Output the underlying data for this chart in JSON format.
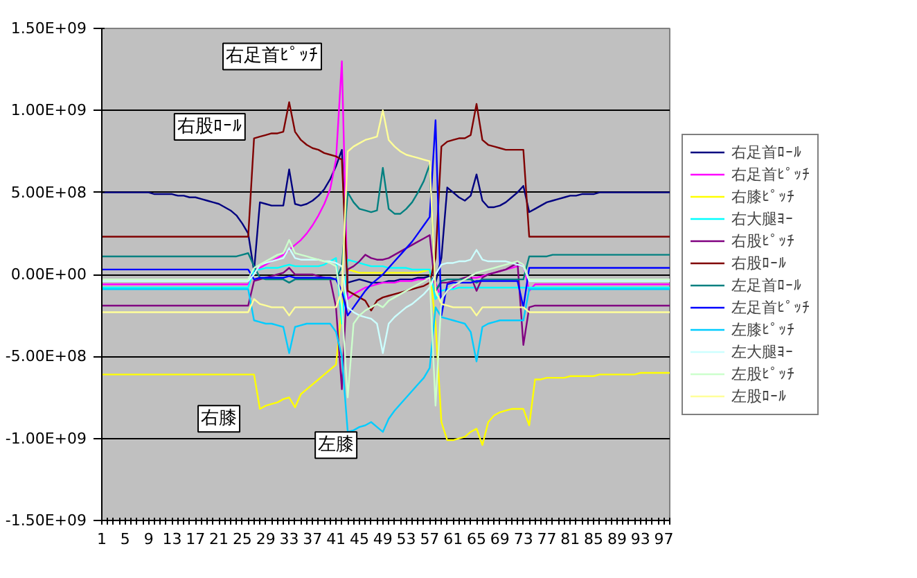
{
  "chart_data": {
    "type": "line",
    "categories": [
      "1",
      null,
      null,
      null,
      "5",
      null,
      null,
      null,
      "9",
      null,
      null,
      null,
      "13",
      null,
      null,
      null,
      "17",
      null,
      null,
      null,
      "21",
      null,
      null,
      null,
      "25",
      null,
      null,
      null,
      "29",
      null,
      null,
      null,
      "33",
      null,
      null,
      null,
      "37",
      null,
      null,
      null,
      "41",
      null,
      null,
      null,
      "45",
      null,
      null,
      null,
      "49",
      null,
      null,
      null,
      "53",
      null,
      null,
      null,
      "57",
      null,
      null,
      null,
      "61",
      null,
      null,
      null,
      "65",
      null,
      null,
      null,
      "69",
      null,
      null,
      null,
      "73",
      null,
      null,
      null,
      "77",
      null,
      null,
      null,
      "81",
      null,
      null,
      null,
      "85",
      null,
      null,
      null,
      "89",
      null,
      null,
      null,
      "93",
      null,
      null,
      null,
      "97",
      null
    ],
    "ylim": [
      -1500000000.0,
      1500000000.0
    ],
    "yticks": [
      {
        "value": -1500000000.0,
        "label": "-1.50E+09"
      },
      {
        "value": -1000000000.0,
        "label": "-1.00E+09"
      },
      {
        "value": -500000000.0,
        "label": "-5.00E+08"
      },
      {
        "value": 0,
        "label": "0.00E+00"
      },
      {
        "value": 500000000.0,
        "label": "5.00E+08"
      },
      {
        "value": 1000000000.0,
        "label": "1.00E+09"
      },
      {
        "value": 1500000000.0,
        "label": "1.50E+09"
      }
    ],
    "grid": "y",
    "legend": "right",
    "annotations": [
      "右足首ﾋﾟｯﾁ",
      "右股ﾛｰﾙ",
      {
        "text": "右膝",
        "x": "21",
        "y": -880000000.0
      },
      {
        "text": "左膝",
        "x": "41",
        "y": -1040000000.0
      }
    ],
    "series": [
      {
        "name": "右足首ﾛｰﾙ",
        "color": "#000080",
        "values": [
          500000000.0,
          500000000.0,
          500000000.0,
          500000000.0,
          500000000.0,
          500000000.0,
          500000000.0,
          500000000.0,
          500000000.0,
          490000000.0,
          490000000.0,
          490000000.0,
          490000000.0,
          480000000.0,
          480000000.0,
          470000000.0,
          470000000.0,
          460000000.0,
          450000000.0,
          440000000.0,
          430000000.0,
          410000000.0,
          390000000.0,
          360000000.0,
          310000000.0,
          250000000.0,
          20000000.0,
          440000000.0,
          430000000.0,
          420000000.0,
          420000000.0,
          420000000.0,
          640000000.0,
          430000000.0,
          420000000.0,
          430000000.0,
          450000000.0,
          480000000.0,
          520000000.0,
          580000000.0,
          660000000.0,
          760000000.0,
          -50000000.0,
          -40000000.0,
          -30000000.0,
          -40000000.0,
          -50000000.0,
          -50000000.0,
          -50000000.0,
          -40000000.0,
          -40000000.0,
          -30000000.0,
          -30000000.0,
          -30000000.0,
          -20000000.0,
          -20000000.0,
          -10000000.0,
          -50000000.0,
          100000000.0,
          530000000.0,
          500000000.0,
          470000000.0,
          450000000.0,
          480000000.0,
          610000000.0,
          450000000.0,
          410000000.0,
          410000000.0,
          420000000.0,
          440000000.0,
          470000000.0,
          500000000.0,
          540000000.0,
          380000000.0,
          400000000.0,
          420000000.0,
          440000000.0,
          450000000.0,
          460000000.0,
          470000000.0,
          480000000.0,
          480000000.0,
          490000000.0,
          490000000.0,
          490000000.0,
          500000000.0,
          500000000.0,
          500000000.0,
          500000000.0,
          500000000.0,
          500000000.0,
          500000000.0,
          500000000.0,
          500000000.0,
          500000000.0,
          500000000.0,
          500000000.0,
          500000000.0
        ]
      },
      {
        "name": "右足首ﾋﾟｯﾁ",
        "color": "#ff00ff",
        "values": [
          -60000000.0,
          -60000000.0,
          -60000000.0,
          -60000000.0,
          -60000000.0,
          -60000000.0,
          -60000000.0,
          -60000000.0,
          -60000000.0,
          -60000000.0,
          -60000000.0,
          -60000000.0,
          -60000000.0,
          -60000000.0,
          -60000000.0,
          -60000000.0,
          -60000000.0,
          -60000000.0,
          -60000000.0,
          -60000000.0,
          -60000000.0,
          -60000000.0,
          -60000000.0,
          -60000000.0,
          -60000000.0,
          -60000000.0,
          30000000.0,
          40000000.0,
          60000000.0,
          80000000.0,
          100000000.0,
          120000000.0,
          150000000.0,
          180000000.0,
          210000000.0,
          250000000.0,
          300000000.0,
          360000000.0,
          430000000.0,
          520000000.0,
          700000000.0,
          1300000000.0,
          -150000000.0,
          -120000000.0,
          -100000000.0,
          -80000000.0,
          -70000000.0,
          -60000000.0,
          -50000000.0,
          -50000000.0,
          -50000000.0,
          -40000000.0,
          -40000000.0,
          -40000000.0,
          -30000000.0,
          -30000000.0,
          -30000000.0,
          -50000000.0,
          -150000000.0,
          -100000000.0,
          -80000000.0,
          -50000000.0,
          -30000000.0,
          -20000000.0,
          -20000000.0,
          -10000000.0,
          0.0,
          10000000.0,
          20000000.0,
          30000000.0,
          40000000.0,
          50000000.0,
          60000000.0,
          -100000000.0,
          -60000000.0,
          -60000000.0,
          -60000000.0,
          -60000000.0,
          -60000000.0,
          -60000000.0,
          -60000000.0,
          -60000000.0,
          -60000000.0,
          -60000000.0,
          -60000000.0,
          -60000000.0,
          -60000000.0,
          -60000000.0,
          -60000000.0,
          -60000000.0,
          -60000000.0,
          -60000000.0,
          -60000000.0,
          -60000000.0,
          -60000000.0,
          -60000000.0,
          -60000000.0,
          -60000000.0
        ]
      },
      {
        "name": "右膝ﾋﾟｯﾁ",
        "color": "#ffff00",
        "values": [
          -610000000.0,
          -610000000.0,
          -610000000.0,
          -610000000.0,
          -610000000.0,
          -610000000.0,
          -610000000.0,
          -610000000.0,
          -610000000.0,
          -610000000.0,
          -610000000.0,
          -610000000.0,
          -610000000.0,
          -610000000.0,
          -610000000.0,
          -610000000.0,
          -610000000.0,
          -610000000.0,
          -610000000.0,
          -610000000.0,
          -610000000.0,
          -610000000.0,
          -610000000.0,
          -610000000.0,
          -610000000.0,
          -610000000.0,
          -610000000.0,
          -820000000.0,
          -800000000.0,
          -790000000.0,
          -780000000.0,
          -760000000.0,
          -750000000.0,
          -810000000.0,
          -730000000.0,
          -700000000.0,
          -670000000.0,
          -640000000.0,
          -610000000.0,
          -580000000.0,
          -550000000.0,
          -200000000.0,
          30000000.0,
          20000000.0,
          10000000.0,
          10000000.0,
          10000000.0,
          10000000.0,
          10000000.0,
          10000000.0,
          10000000.0,
          10000000.0,
          10000000.0,
          10000000.0,
          10000000.0,
          20000000.0,
          30000000.0,
          -300000000.0,
          -900000000.0,
          -1010000000.0,
          -1010000000.0,
          -1000000000.0,
          -990000000.0,
          -960000000.0,
          -940000000.0,
          -1040000000.0,
          -900000000.0,
          -860000000.0,
          -840000000.0,
          -830000000.0,
          -820000000.0,
          -820000000.0,
          -820000000.0,
          -920000000.0,
          -640000000.0,
          -640000000.0,
          -630000000.0,
          -630000000.0,
          -630000000.0,
          -630000000.0,
          -620000000.0,
          -620000000.0,
          -620000000.0,
          -620000000.0,
          -620000000.0,
          -610000000.0,
          -610000000.0,
          -610000000.0,
          -610000000.0,
          -610000000.0,
          -610000000.0,
          -610000000.0,
          -600000000.0,
          -600000000.0,
          -600000000.0,
          -600000000.0,
          -600000000.0,
          -600000000.0
        ]
      },
      {
        "name": "右大腿ﾖｰ",
        "color": "#00ffff",
        "values": [
          -80000000.0,
          -80000000.0,
          -80000000.0,
          -80000000.0,
          -80000000.0,
          -80000000.0,
          -80000000.0,
          -80000000.0,
          -80000000.0,
          -80000000.0,
          -80000000.0,
          -80000000.0,
          -80000000.0,
          -80000000.0,
          -80000000.0,
          -80000000.0,
          -80000000.0,
          -80000000.0,
          -80000000.0,
          -80000000.0,
          -80000000.0,
          -80000000.0,
          -80000000.0,
          -80000000.0,
          -80000000.0,
          -80000000.0,
          30000000.0,
          30000000.0,
          40000000.0,
          40000000.0,
          40000000.0,
          50000000.0,
          60000000.0,
          50000000.0,
          50000000.0,
          50000000.0,
          50000000.0,
          50000000.0,
          60000000.0,
          80000000.0,
          100000000.0,
          -300000000.0,
          90000000.0,
          80000000.0,
          70000000.0,
          60000000.0,
          50000000.0,
          50000000.0,
          50000000.0,
          40000000.0,
          40000000.0,
          40000000.0,
          40000000.0,
          30000000.0,
          30000000.0,
          30000000.0,
          30000000.0,
          -150000000.0,
          -100000000.0,
          -90000000.0,
          -90000000.0,
          -80000000.0,
          -80000000.0,
          -80000000.0,
          -80000000.0,
          -80000000.0,
          -80000000.0,
          -80000000.0,
          -80000000.0,
          -80000000.0,
          -80000000.0,
          -80000000.0,
          -80000000.0,
          -80000000.0,
          -80000000.0,
          -80000000.0,
          -80000000.0,
          -80000000.0,
          -80000000.0,
          -80000000.0,
          -80000000.0,
          -80000000.0,
          -80000000.0,
          -80000000.0,
          -80000000.0,
          -80000000.0,
          -80000000.0,
          -80000000.0,
          -80000000.0,
          -80000000.0,
          -80000000.0,
          -80000000.0,
          -80000000.0,
          -80000000.0,
          -80000000.0,
          -80000000.0,
          -80000000.0,
          -80000000.0
        ]
      },
      {
        "name": "右股ﾋﾟｯﾁ",
        "color": "#800080",
        "values": [
          -190000000.0,
          -190000000.0,
          -190000000.0,
          -190000000.0,
          -190000000.0,
          -190000000.0,
          -190000000.0,
          -190000000.0,
          -190000000.0,
          -190000000.0,
          -190000000.0,
          -190000000.0,
          -190000000.0,
          -190000000.0,
          -190000000.0,
          -190000000.0,
          -190000000.0,
          -190000000.0,
          -190000000.0,
          -190000000.0,
          -190000000.0,
          -190000000.0,
          -190000000.0,
          -190000000.0,
          -190000000.0,
          -190000000.0,
          -40000000.0,
          -30000000.0,
          -20000000.0,
          -10000000.0,
          0.0,
          10000000.0,
          40000000.0,
          0.0,
          0.0,
          0.0,
          0.0,
          -10000000.0,
          -20000000.0,
          -30000000.0,
          -200000000.0,
          -700000000.0,
          30000000.0,
          50000000.0,
          80000000.0,
          120000000.0,
          100000000.0,
          90000000.0,
          90000000.0,
          100000000.0,
          120000000.0,
          140000000.0,
          160000000.0,
          180000000.0,
          200000000.0,
          220000000.0,
          240000000.0,
          -100000000.0,
          -50000000.0,
          -50000000.0,
          -40000000.0,
          -30000000.0,
          -20000000.0,
          -10000000.0,
          -100000000.0,
          -20000000.0,
          0.0,
          10000000.0,
          20000000.0,
          30000000.0,
          50000000.0,
          70000000.0,
          -430000000.0,
          -200000000.0,
          -190000000.0,
          -190000000.0,
          -190000000.0,
          -190000000.0,
          -190000000.0,
          -190000000.0,
          -190000000.0,
          -190000000.0,
          -190000000.0,
          -190000000.0,
          -190000000.0,
          -190000000.0,
          -190000000.0,
          -190000000.0,
          -190000000.0,
          -190000000.0,
          -190000000.0,
          -190000000.0,
          -190000000.0,
          -190000000.0,
          -190000000.0,
          -190000000.0,
          -190000000.0,
          -190000000.0
        ]
      },
      {
        "name": "右股ﾛｰﾙ",
        "color": "#800000",
        "values": [
          230000000.0,
          230000000.0,
          230000000.0,
          230000000.0,
          230000000.0,
          230000000.0,
          230000000.0,
          230000000.0,
          230000000.0,
          230000000.0,
          230000000.0,
          230000000.0,
          230000000.0,
          230000000.0,
          230000000.0,
          230000000.0,
          230000000.0,
          230000000.0,
          230000000.0,
          230000000.0,
          230000000.0,
          230000000.0,
          230000000.0,
          230000000.0,
          230000000.0,
          230000000.0,
          830000000.0,
          840000000.0,
          850000000.0,
          860000000.0,
          860000000.0,
          870000000.0,
          1050000000.0,
          870000000.0,
          820000000.0,
          790000000.0,
          770000000.0,
          760000000.0,
          740000000.0,
          730000000.0,
          720000000.0,
          700000000.0,
          -100000000.0,
          -120000000.0,
          -140000000.0,
          -160000000.0,
          -220000000.0,
          -160000000.0,
          -140000000.0,
          -130000000.0,
          -120000000.0,
          -110000000.0,
          -100000000.0,
          -90000000.0,
          -80000000.0,
          -70000000.0,
          -50000000.0,
          100000000.0,
          780000000.0,
          810000000.0,
          820000000.0,
          830000000.0,
          830000000.0,
          850000000.0,
          1040000000.0,
          820000000.0,
          790000000.0,
          780000000.0,
          770000000.0,
          760000000.0,
          760000000.0,
          760000000.0,
          760000000.0,
          230000000.0,
          230000000.0,
          230000000.0,
          230000000.0,
          230000000.0,
          230000000.0,
          230000000.0,
          230000000.0,
          230000000.0,
          230000000.0,
          230000000.0,
          230000000.0,
          230000000.0,
          230000000.0,
          230000000.0,
          230000000.0,
          230000000.0,
          230000000.0,
          230000000.0,
          230000000.0,
          230000000.0,
          230000000.0,
          230000000.0,
          230000000.0,
          230000000.0
        ]
      },
      {
        "name": "左足首ﾛｰﾙ",
        "color": "#008080",
        "values": [
          110000000.0,
          110000000.0,
          110000000.0,
          110000000.0,
          110000000.0,
          110000000.0,
          110000000.0,
          110000000.0,
          110000000.0,
          110000000.0,
          110000000.0,
          110000000.0,
          110000000.0,
          110000000.0,
          110000000.0,
          110000000.0,
          110000000.0,
          110000000.0,
          110000000.0,
          110000000.0,
          110000000.0,
          110000000.0,
          110000000.0,
          110000000.0,
          120000000.0,
          130000000.0,
          50000000.0,
          -20000000.0,
          -30000000.0,
          -30000000.0,
          -30000000.0,
          -30000000.0,
          -50000000.0,
          -30000000.0,
          -30000000.0,
          -30000000.0,
          -30000000.0,
          -30000000.0,
          -30000000.0,
          -30000000.0,
          -30000000.0,
          50000000.0,
          500000000.0,
          440000000.0,
          400000000.0,
          390000000.0,
          380000000.0,
          390000000.0,
          650000000.0,
          400000000.0,
          370000000.0,
          370000000.0,
          400000000.0,
          440000000.0,
          500000000.0,
          570000000.0,
          670000000.0,
          -100000000.0,
          -40000000.0,
          -30000000.0,
          -30000000.0,
          -30000000.0,
          -30000000.0,
          -30000000.0,
          -50000000.0,
          -30000000.0,
          -30000000.0,
          -30000000.0,
          -30000000.0,
          -30000000.0,
          -30000000.0,
          -30000000.0,
          -30000000.0,
          110000000.0,
          110000000.0,
          110000000.0,
          110000000.0,
          120000000.0,
          120000000.0,
          120000000.0,
          120000000.0,
          120000000.0,
          120000000.0,
          120000000.0,
          120000000.0,
          120000000.0,
          120000000.0,
          120000000.0,
          120000000.0,
          120000000.0,
          120000000.0,
          120000000.0,
          120000000.0,
          120000000.0,
          120000000.0,
          120000000.0,
          120000000.0,
          120000000.0
        ]
      },
      {
        "name": "左足首ﾋﾟｯﾁ",
        "color": "#0000ff",
        "values": [
          30000000.0,
          30000000.0,
          30000000.0,
          30000000.0,
          30000000.0,
          30000000.0,
          30000000.0,
          30000000.0,
          30000000.0,
          30000000.0,
          30000000.0,
          30000000.0,
          30000000.0,
          30000000.0,
          30000000.0,
          30000000.0,
          30000000.0,
          30000000.0,
          30000000.0,
          30000000.0,
          30000000.0,
          30000000.0,
          30000000.0,
          30000000.0,
          30000000.0,
          30000000.0,
          -30000000.0,
          -20000000.0,
          -20000000.0,
          -20000000.0,
          -20000000.0,
          -20000000.0,
          -10000000.0,
          -20000000.0,
          -20000000.0,
          -20000000.0,
          -20000000.0,
          -20000000.0,
          -20000000.0,
          -20000000.0,
          -30000000.0,
          -100000000.0,
          -250000000.0,
          -200000000.0,
          -150000000.0,
          -100000000.0,
          -60000000.0,
          -30000000.0,
          0.0,
          40000000.0,
          80000000.0,
          120000000.0,
          160000000.0,
          200000000.0,
          250000000.0,
          300000000.0,
          350000000.0,
          940000000.0,
          -250000000.0,
          -60000000.0,
          -50000000.0,
          -50000000.0,
          -50000000.0,
          -50000000.0,
          -40000000.0,
          -40000000.0,
          -40000000.0,
          -40000000.0,
          -40000000.0,
          -40000000.0,
          -40000000.0,
          -40000000.0,
          -200000000.0,
          40000000.0,
          40000000.0,
          40000000.0,
          40000000.0,
          40000000.0,
          40000000.0,
          40000000.0,
          40000000.0,
          40000000.0,
          40000000.0,
          40000000.0,
          40000000.0,
          40000000.0,
          40000000.0,
          40000000.0,
          40000000.0,
          40000000.0,
          40000000.0,
          40000000.0,
          40000000.0,
          40000000.0,
          40000000.0,
          40000000.0,
          40000000.0,
          40000000.0
        ]
      },
      {
        "name": "左膝ﾋﾟｯﾁ",
        "color": "#00ccff",
        "values": [
          -90000000.0,
          -90000000.0,
          -90000000.0,
          -90000000.0,
          -90000000.0,
          -90000000.0,
          -90000000.0,
          -90000000.0,
          -90000000.0,
          -90000000.0,
          -90000000.0,
          -90000000.0,
          -90000000.0,
          -90000000.0,
          -90000000.0,
          -90000000.0,
          -90000000.0,
          -90000000.0,
          -90000000.0,
          -90000000.0,
          -90000000.0,
          -90000000.0,
          -90000000.0,
          -90000000.0,
          -90000000.0,
          -90000000.0,
          -280000000.0,
          -290000000.0,
          -300000000.0,
          -300000000.0,
          -310000000.0,
          -320000000.0,
          -480000000.0,
          -320000000.0,
          -310000000.0,
          -300000000.0,
          -300000000.0,
          -300000000.0,
          -300000000.0,
          -300000000.0,
          -350000000.0,
          -500000000.0,
          -960000000.0,
          -950000000.0,
          -930000000.0,
          -920000000.0,
          -900000000.0,
          -930000000.0,
          -960000000.0,
          -880000000.0,
          -830000000.0,
          -790000000.0,
          -750000000.0,
          -710000000.0,
          -670000000.0,
          -630000000.0,
          -570000000.0,
          -200000000.0,
          -260000000.0,
          -270000000.0,
          -280000000.0,
          -290000000.0,
          -300000000.0,
          -350000000.0,
          -530000000.0,
          -320000000.0,
          -300000000.0,
          -290000000.0,
          -280000000.0,
          -280000000.0,
          -280000000.0,
          -280000000.0,
          -280000000.0,
          -90000000.0,
          -90000000.0,
          -90000000.0,
          -90000000.0,
          -90000000.0,
          -90000000.0,
          -90000000.0,
          -90000000.0,
          -90000000.0,
          -90000000.0,
          -90000000.0,
          -90000000.0,
          -90000000.0,
          -90000000.0,
          -90000000.0,
          -90000000.0,
          -90000000.0,
          -90000000.0,
          -90000000.0,
          -90000000.0,
          -90000000.0,
          -90000000.0,
          -90000000.0,
          -90000000.0,
          -90000000.0
        ]
      },
      {
        "name": "左大腿ﾖｰ",
        "color": "#ccffff",
        "values": [
          -40000000.0,
          -40000000.0,
          -40000000.0,
          -40000000.0,
          -40000000.0,
          -40000000.0,
          -40000000.0,
          -40000000.0,
          -40000000.0,
          -40000000.0,
          -40000000.0,
          -40000000.0,
          -40000000.0,
          -40000000.0,
          -40000000.0,
          -40000000.0,
          -40000000.0,
          -40000000.0,
          -40000000.0,
          -40000000.0,
          -40000000.0,
          -40000000.0,
          -40000000.0,
          -40000000.0,
          -40000000.0,
          -40000000.0,
          0.0,
          60000000.0,
          70000000.0,
          80000000.0,
          90000000.0,
          100000000.0,
          160000000.0,
          100000000.0,
          90000000.0,
          90000000.0,
          90000000.0,
          90000000.0,
          80000000.0,
          80000000.0,
          70000000.0,
          50000000.0,
          -200000000.0,
          -230000000.0,
          -250000000.0,
          -260000000.0,
          -270000000.0,
          -300000000.0,
          -480000000.0,
          -300000000.0,
          -260000000.0,
          -230000000.0,
          -200000000.0,
          -180000000.0,
          -150000000.0,
          -120000000.0,
          -80000000.0,
          0.0,
          60000000.0,
          70000000.0,
          70000000.0,
          80000000.0,
          80000000.0,
          90000000.0,
          150000000.0,
          90000000.0,
          80000000.0,
          80000000.0,
          80000000.0,
          80000000.0,
          70000000.0,
          60000000.0,
          50000000.0,
          -40000000.0,
          -40000000.0,
          -40000000.0,
          -40000000.0,
          -40000000.0,
          -40000000.0,
          -40000000.0,
          -40000000.0,
          -40000000.0,
          -40000000.0,
          -40000000.0,
          -40000000.0,
          -40000000.0,
          -40000000.0,
          -40000000.0,
          -40000000.0,
          -40000000.0,
          -40000000.0,
          -40000000.0,
          -40000000.0,
          -40000000.0,
          -40000000.0,
          -40000000.0,
          -40000000.0,
          -40000000.0
        ]
      },
      {
        "name": "左股ﾋﾟｯﾁ",
        "color": "#ccffcc",
        "values": [
          -30000000.0,
          -30000000.0,
          -30000000.0,
          -30000000.0,
          -30000000.0,
          -30000000.0,
          -30000000.0,
          -30000000.0,
          -30000000.0,
          -30000000.0,
          -30000000.0,
          -30000000.0,
          -30000000.0,
          -30000000.0,
          -30000000.0,
          -30000000.0,
          -30000000.0,
          -30000000.0,
          -30000000.0,
          -30000000.0,
          -30000000.0,
          -30000000.0,
          -30000000.0,
          -30000000.0,
          -30000000.0,
          -30000000.0,
          40000000.0,
          60000000.0,
          80000000.0,
          100000000.0,
          120000000.0,
          130000000.0,
          210000000.0,
          130000000.0,
          120000000.0,
          110000000.0,
          100000000.0,
          90000000.0,
          80000000.0,
          70000000.0,
          50000000.0,
          -200000000.0,
          -750000000.0,
          -300000000.0,
          -250000000.0,
          -220000000.0,
          -200000000.0,
          -180000000.0,
          -200000000.0,
          -160000000.0,
          -140000000.0,
          -120000000.0,
          -100000000.0,
          -80000000.0,
          -60000000.0,
          -40000000.0,
          -20000000.0,
          -800000000.0,
          -150000000.0,
          -100000000.0,
          -70000000.0,
          -50000000.0,
          -30000000.0,
          -10000000.0,
          10000000.0,
          20000000.0,
          30000000.0,
          40000000.0,
          50000000.0,
          60000000.0,
          70000000.0,
          80000000.0,
          60000000.0,
          -30000000.0,
          -30000000.0,
          -30000000.0,
          -30000000.0,
          -30000000.0,
          -30000000.0,
          -30000000.0,
          -30000000.0,
          -30000000.0,
          -30000000.0,
          -30000000.0,
          -30000000.0,
          -30000000.0,
          -30000000.0,
          -30000000.0,
          -30000000.0,
          -30000000.0,
          -30000000.0,
          -30000000.0,
          -30000000.0,
          -30000000.0,
          -30000000.0,
          -30000000.0,
          -30000000.0,
          -30000000.0
        ]
      },
      {
        "name": "左股ﾛｰﾙ",
        "color": "#ffff99",
        "values": [
          -230000000.0,
          -230000000.0,
          -230000000.0,
          -230000000.0,
          -230000000.0,
          -230000000.0,
          -230000000.0,
          -230000000.0,
          -230000000.0,
          -230000000.0,
          -230000000.0,
          -230000000.0,
          -230000000.0,
          -230000000.0,
          -230000000.0,
          -230000000.0,
          -230000000.0,
          -230000000.0,
          -230000000.0,
          -230000000.0,
          -230000000.0,
          -230000000.0,
          -230000000.0,
          -230000000.0,
          -230000000.0,
          -230000000.0,
          -150000000.0,
          -180000000.0,
          -190000000.0,
          -200000000.0,
          -200000000.0,
          -200000000.0,
          -250000000.0,
          -200000000.0,
          -200000000.0,
          -200000000.0,
          -200000000.0,
          -200000000.0,
          -200000000.0,
          -200000000.0,
          -200000000.0,
          -100000000.0,
          750000000.0,
          780000000.0,
          800000000.0,
          820000000.0,
          830000000.0,
          840000000.0,
          1000000000.0,
          820000000.0,
          780000000.0,
          750000000.0,
          730000000.0,
          720000000.0,
          710000000.0,
          700000000.0,
          690000000.0,
          -100000000.0,
          -180000000.0,
          -190000000.0,
          -200000000.0,
          -200000000.0,
          -200000000.0,
          -200000000.0,
          -250000000.0,
          -200000000.0,
          -200000000.0,
          -200000000.0,
          -200000000.0,
          -200000000.0,
          -200000000.0,
          -200000000.0,
          -200000000.0,
          -230000000.0,
          -230000000.0,
          -230000000.0,
          -230000000.0,
          -230000000.0,
          -230000000.0,
          -230000000.0,
          -230000000.0,
          -230000000.0,
          -230000000.0,
          -230000000.0,
          -230000000.0,
          -230000000.0,
          -230000000.0,
          -230000000.0,
          -230000000.0,
          -230000000.0,
          -230000000.0,
          -230000000.0,
          -230000000.0,
          -230000000.0,
          -230000000.0,
          -230000000.0,
          -230000000.0,
          -230000000.0
        ]
      }
    ]
  }
}
